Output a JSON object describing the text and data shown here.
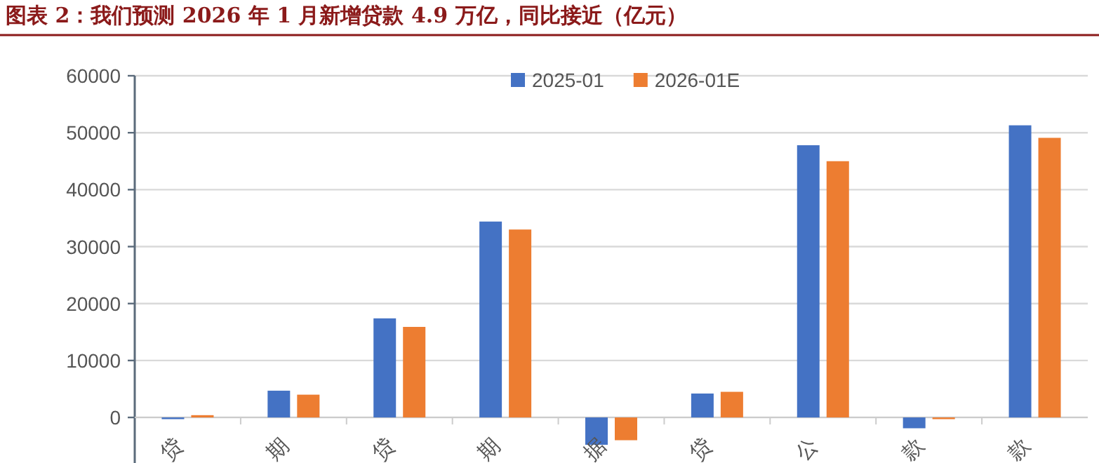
{
  "chart_data": {
    "type": "bar",
    "title": "图表 2：我们预测 2026 年 1 月新增贷款 4.9 万亿，同比接近（亿元）",
    "categories": [
      "贷",
      "期",
      "贷",
      "期",
      "据",
      "贷",
      "公",
      "款",
      "款"
    ],
    "series": [
      {
        "name": "2025-01",
        "color": "#4472c4",
        "values": [
          -300,
          4700,
          17400,
          34400,
          -4800,
          4200,
          47800,
          -1900,
          51300
        ]
      },
      {
        "name": "2026-01E",
        "color": "#ed7d31",
        "values": [
          400,
          4000,
          15900,
          33000,
          -4000,
          4500,
          45000,
          -300,
          49100
        ]
      }
    ],
    "ylim": [
      -8000,
      60000
    ],
    "yticks": [
      0,
      10000,
      20000,
      30000,
      40000,
      50000,
      60000
    ],
    "grid": "y",
    "legend": "top"
  }
}
